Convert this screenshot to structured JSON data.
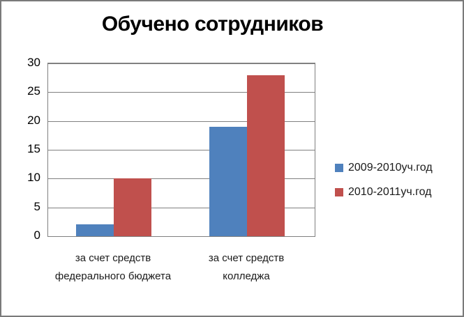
{
  "title": "Обучено сотрудников",
  "colors": {
    "series1": "#4F81BD",
    "series2": "#C0504D",
    "gridline": "#808080",
    "plot_border": "#808080",
    "frame_border": "#7a7a7a",
    "text": "#000000"
  },
  "chart_data": {
    "type": "bar",
    "title": "Обучено сотрудников",
    "categories": [
      "за счет средств федерального бюджета",
      "за счет средств колледжа"
    ],
    "series": [
      {
        "name": "2009-2010уч.год",
        "color": "#4F81BD",
        "values": [
          2,
          19
        ]
      },
      {
        "name": "2010-2011уч.год",
        "color": "#C0504D",
        "values": [
          10,
          28
        ]
      }
    ],
    "xlabel": "",
    "ylabel": "",
    "ylim": [
      0,
      30
    ],
    "yticks": [
      0,
      5,
      10,
      15,
      20,
      25,
      30
    ],
    "grid": true,
    "legend_position": "right"
  }
}
